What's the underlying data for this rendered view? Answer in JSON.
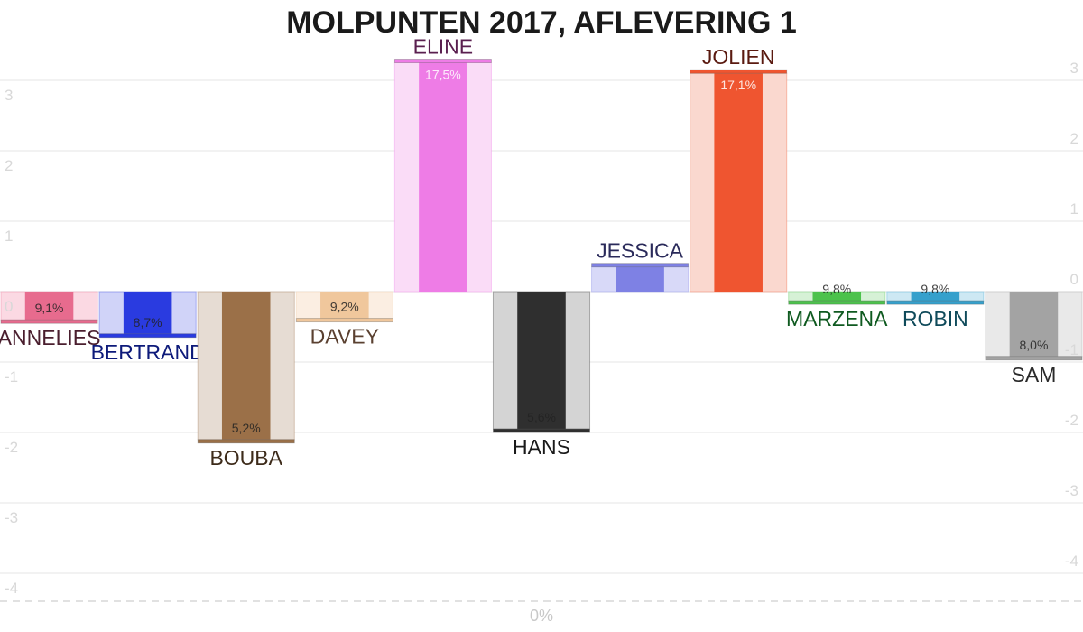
{
  "chart_data": {
    "type": "bar",
    "title": "MOLPUNTEN 2017, AFLEVERING 1",
    "ylim": [
      -4.4,
      3.35
    ],
    "y_ticks_left": [
      3,
      2,
      1,
      0,
      -1,
      -2,
      -3,
      -4
    ],
    "y_ticks_right": [
      3,
      2,
      1,
      0,
      -1,
      -2,
      -3,
      -4
    ],
    "bottom_label": "0%",
    "grid": true,
    "categories": [
      "ANNELIES",
      "BERTRAND",
      "BOUBA",
      "DAVEY",
      "ELINE",
      "HANS",
      "JESSICA",
      "JOLIEN",
      "MARZENA",
      "ROBIN",
      "SAM"
    ],
    "values": [
      -0.4,
      -0.6,
      -2.1,
      -0.38,
      3.25,
      -1.95,
      0.35,
      3.1,
      -0.13,
      -0.13,
      -0.92
    ],
    "percent_labels": [
      "9,1%",
      "8,7%",
      "5,2%",
      "9,2%",
      "17,5%",
      "5,6%",
      "",
      "17,1%",
      "9,8%",
      "9,8%",
      "8,0%"
    ],
    "colors": [
      "#e76b8e",
      "#2a3be0",
      "#9b7048",
      "#f0c79c",
      "#ee7ce6",
      "#2f2f2f",
      "#7e81e4",
      "#ef5530",
      "#4cc24c",
      "#35a0cc",
      "#a3a3a3"
    ],
    "light_colors": [
      "#fbd9e3",
      "#d0d3f8",
      "#e6dcd3",
      "#fbeee2",
      "#fadcf7",
      "#d4d4d4",
      "#d8d9f8",
      "#fad8cf",
      "#d6f1d6",
      "#cde8f3",
      "#e9e9e9"
    ],
    "label_colors": [
      "#4a1e2e",
      "#0d1a7a",
      "#3d2b1a",
      "#5a4030",
      "#5a1f4f",
      "#1a1a1a",
      "#2a2a5a",
      "#5a1a10",
      "#0f5a20",
      "#0f4a5a",
      "#2a2a2a"
    ]
  }
}
